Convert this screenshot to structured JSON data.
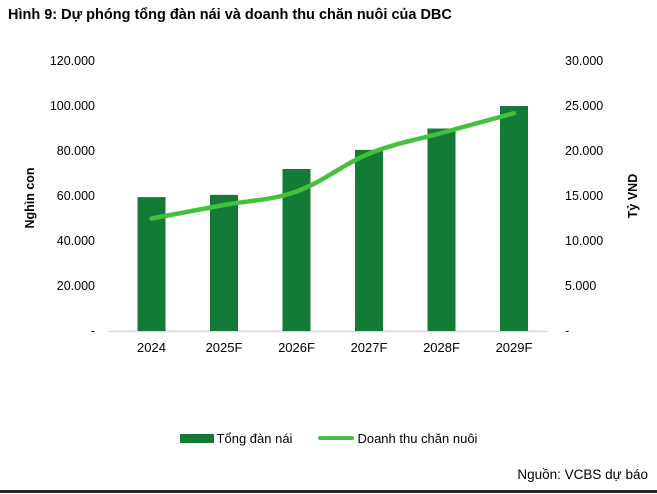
{
  "title": "Hình 9: Dự phóng tổng đàn nái và doanh thu chăn nuôi của DBC",
  "source": "Nguồn: VCBS dự báo",
  "legend": {
    "bar_label": "Tổng đàn nái",
    "line_label": "Doanh thu chăn nuôi"
  },
  "colors": {
    "bar": "#137B36",
    "line": "#44C13C",
    "axis_line": "#D9D9D9",
    "border": "#262626",
    "text": "#000000"
  },
  "chart_data": {
    "type": "bar",
    "subtype": "bar+line combo, dual axis",
    "title": "Hình 9: Dự phóng tổng đàn nái và doanh thu chăn nuôi của DBC",
    "categories": [
      "2024",
      "2025F",
      "2026F",
      "2027F",
      "2028F",
      "2029F"
    ],
    "series": [
      {
        "name": "Tổng đàn nái",
        "type": "bar",
        "axis": "left",
        "values": [
          59500,
          60500,
          72000,
          80500,
          90000,
          100000
        ]
      },
      {
        "name": "Doanh thu chăn nuôi",
        "type": "line",
        "axis": "right",
        "values": [
          12500,
          14000,
          15500,
          19700,
          22000,
          24200
        ]
      }
    ],
    "left_axis": {
      "title": "Nghìn con",
      "min": 0,
      "max": 120000,
      "ticks": [
        "120.000",
        "100.000",
        "80.000",
        "60.000",
        "40.000",
        "20.000",
        "-"
      ]
    },
    "right_axis": {
      "title": "Tỷ VND",
      "min": 0,
      "max": 30000,
      "ticks": [
        "30.000",
        "25.000",
        "20.000",
        "15.000",
        "10.000",
        "5.000",
        "-"
      ]
    },
    "grid": false,
    "legend_position": "bottom"
  }
}
